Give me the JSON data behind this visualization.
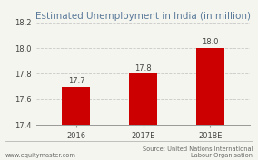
{
  "categories": [
    "2016",
    "2017E",
    "2018E"
  ],
  "values": [
    17.7,
    17.8,
    18.0
  ],
  "bar_color": "#cc0000",
  "title": "Estimated Unemployment in India (in million)",
  "title_fontsize": 7.5,
  "title_color": "#5a7a9a",
  "ylim": [
    17.4,
    18.2
  ],
  "yticks": [
    17.4,
    17.6,
    17.8,
    18.0,
    18.2
  ],
  "bar_width": 0.42,
  "background_color": "#f5f5ef",
  "grid_color": "#c8c8c8",
  "footer_left": "www.equitymaster.com",
  "footer_right": "Source: United Nations International\nLabour Organisation",
  "value_labels": [
    "17.7",
    "17.8",
    "18.0"
  ],
  "label_fontsize": 6.0,
  "tick_fontsize": 6.0,
  "footer_fontsize": 4.8,
  "footer_color": "#666666"
}
